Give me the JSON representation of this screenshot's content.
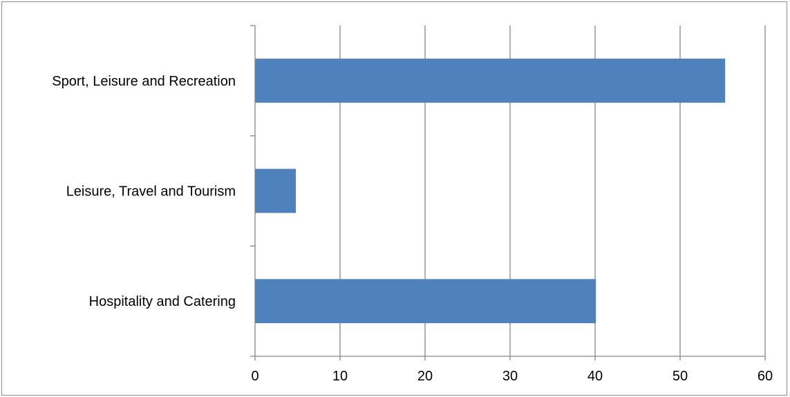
{
  "chart_data": {
    "type": "bar",
    "orientation": "horizontal",
    "title": "",
    "xlabel": "",
    "ylabel": "",
    "categories": [
      "Sport, Leisure and Recreation",
      "Leisure, Travel and Tourism",
      "Hospitality and Catering"
    ],
    "values": [
      55.3,
      4.8,
      40.1
    ],
    "xlim": [
      0,
      60
    ],
    "xticks": [
      0,
      10,
      20,
      30,
      40,
      50,
      60
    ],
    "grid": "vertical",
    "legend": "none",
    "bar_color": "#4f81bd",
    "grid_color": "#868686"
  }
}
